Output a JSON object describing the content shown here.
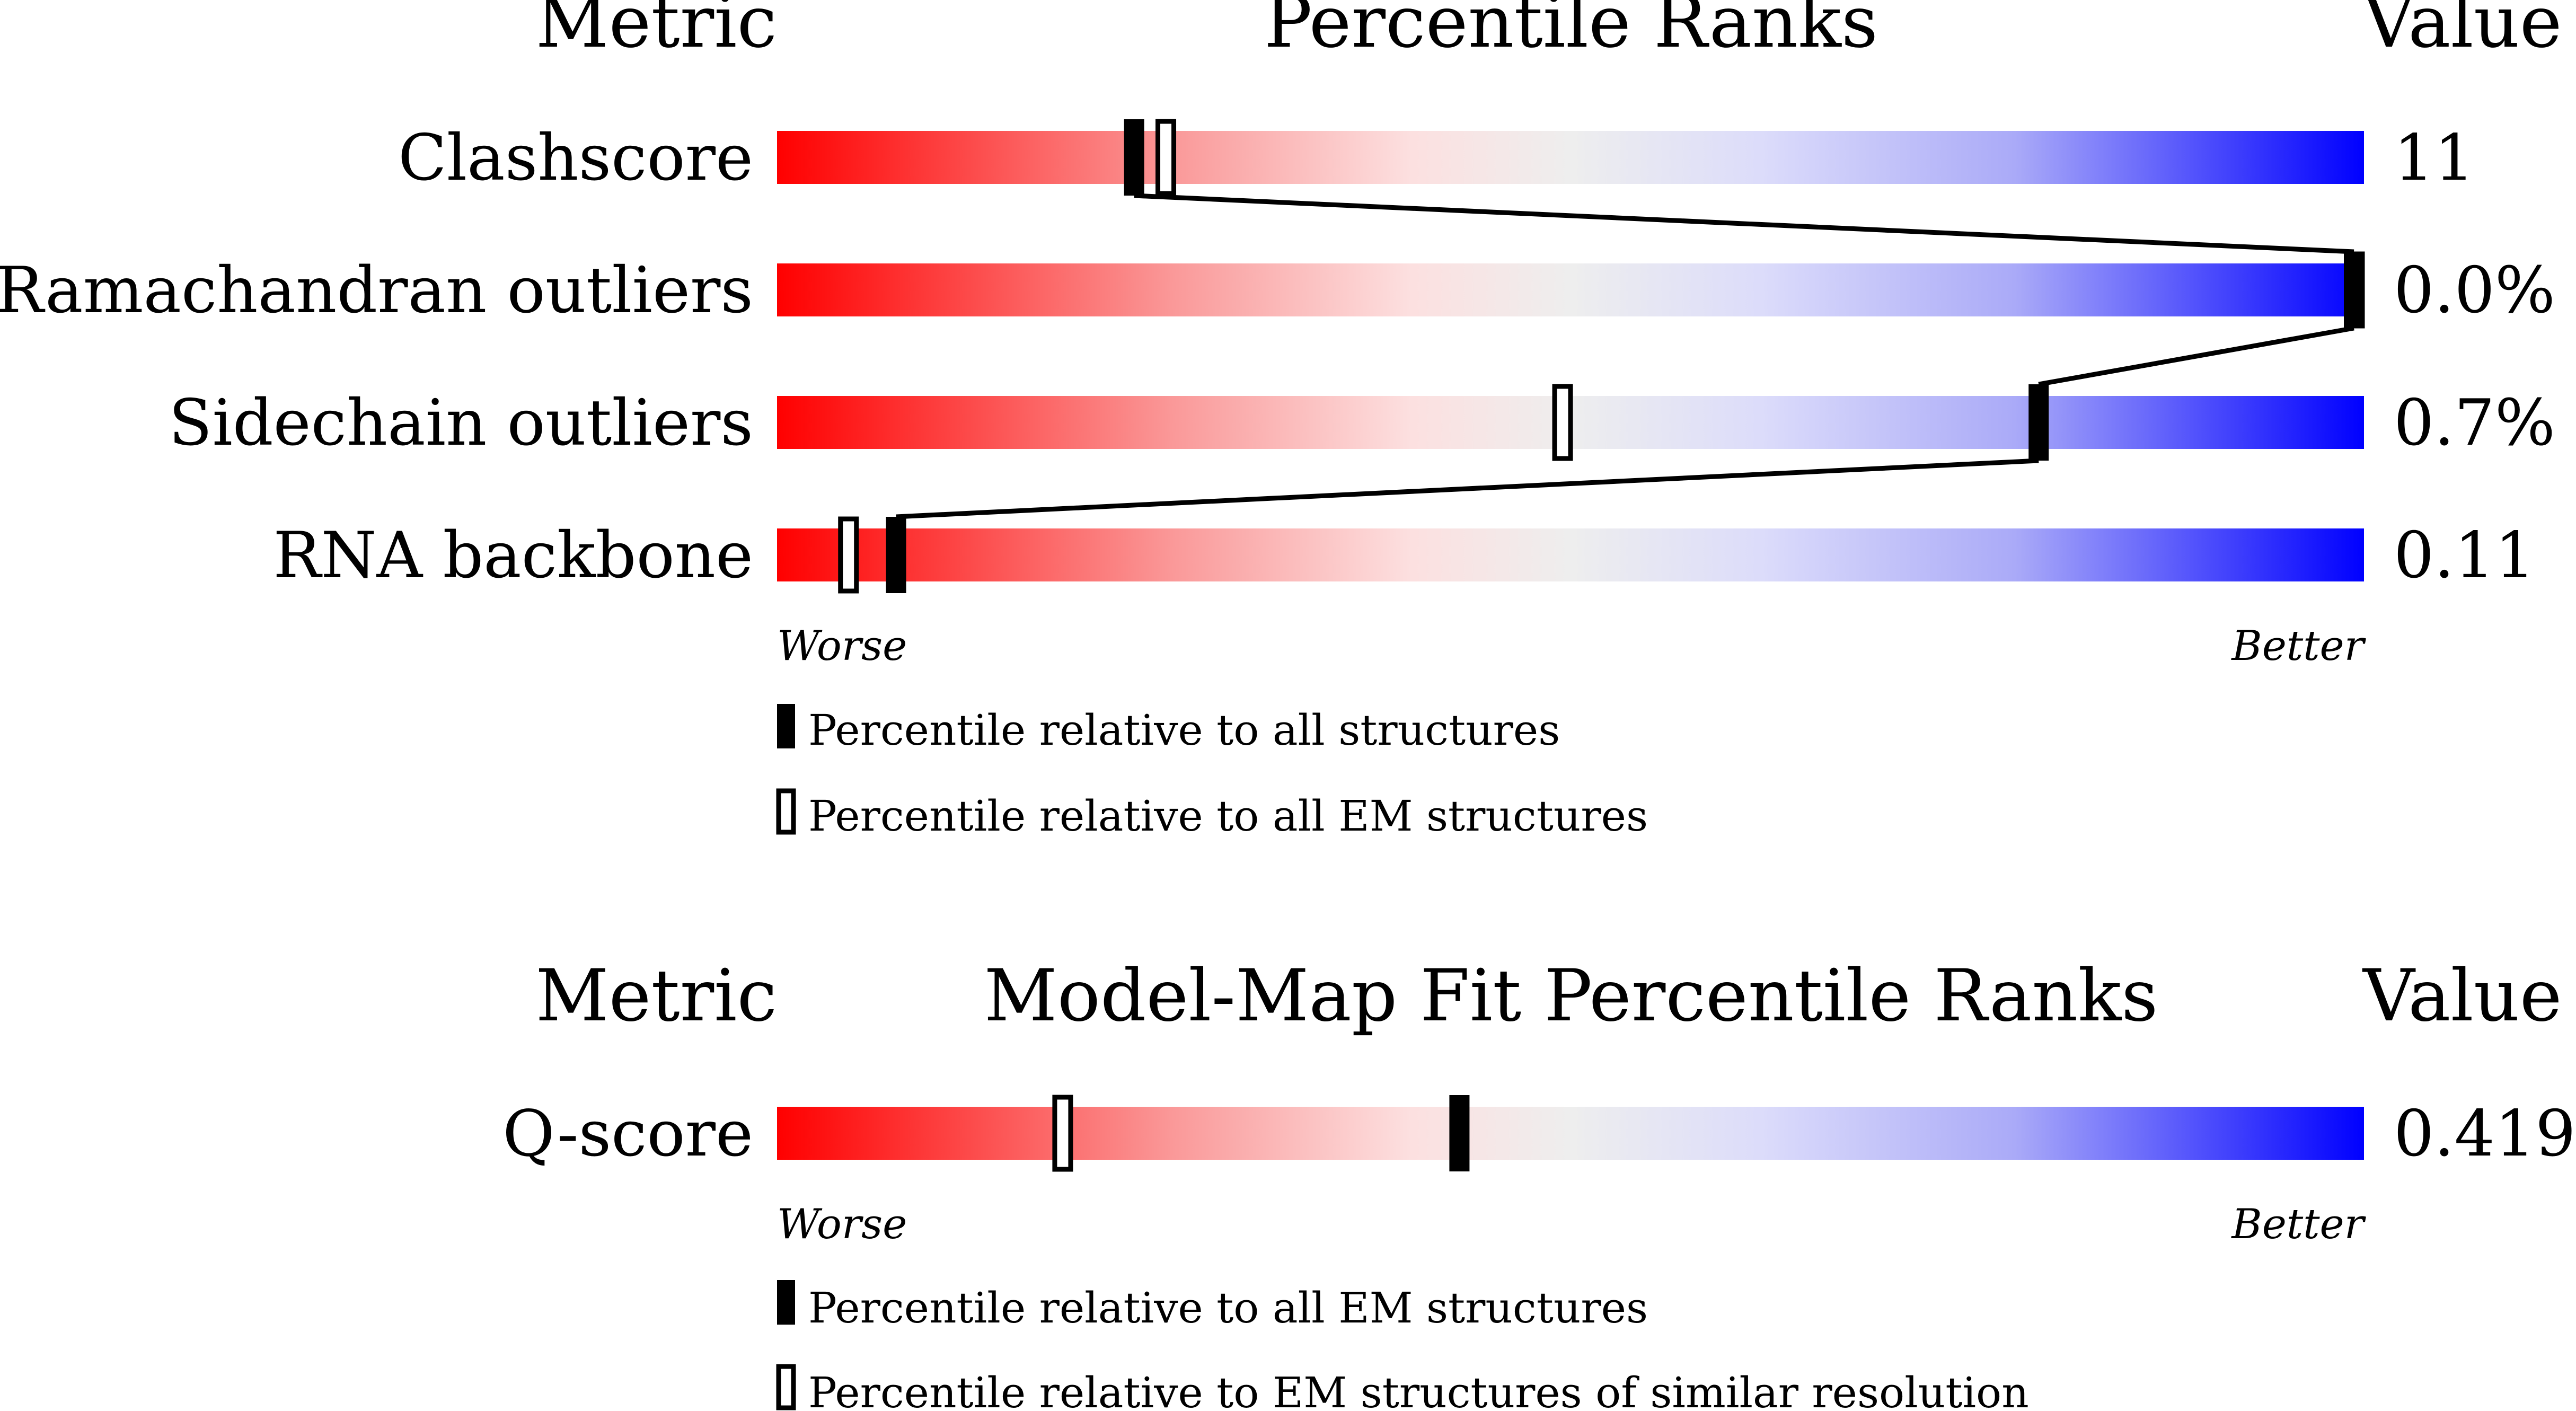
{
  "chart_data": [
    {
      "type": "bar",
      "headers": {
        "metric": "Metric",
        "title": "Percentile Ranks",
        "value": "Value"
      },
      "scale": {
        "min": 0,
        "max": 100,
        "low_label": "Worse",
        "high_label": "Better"
      },
      "rows": [
        {
          "metric": "Clashscore",
          "value": "11",
          "percentile_all": 22.5,
          "percentile_secondary": 24.5
        },
        {
          "metric": "Ramachandran outliers",
          "value": "0.0%",
          "percentile_all": 100,
          "percentile_secondary": 100
        },
        {
          "metric": "Sidechain outliers",
          "value": "0.7%",
          "percentile_all": 79.5,
          "percentile_secondary": 49.5
        },
        {
          "metric": "RNA backbone",
          "value": "0.11",
          "percentile_all": 7.5,
          "percentile_secondary": 4.5
        }
      ],
      "legend": {
        "filled": "Percentile relative to all structures",
        "open": "Percentile relative to all EM structures"
      },
      "connect_filled": true
    },
    {
      "type": "bar",
      "headers": {
        "metric": "Metric",
        "title": "Model-Map Fit Percentile Ranks",
        "value": "Value"
      },
      "scale": {
        "min": 0,
        "max": 100,
        "low_label": "Worse",
        "high_label": "Better"
      },
      "rows": [
        {
          "metric": "Q-score",
          "value": "0.419",
          "percentile_all": 43,
          "percentile_secondary": 18
        }
      ],
      "legend": {
        "filled": "Percentile relative to all EM structures",
        "open": "Percentile relative to EM structures of similar resolution"
      },
      "connect_filled": false
    }
  ],
  "colors": {
    "worse": "#ff0000",
    "mid": "#eeeeee",
    "better": "#0000ff",
    "marker": "#000000"
  }
}
